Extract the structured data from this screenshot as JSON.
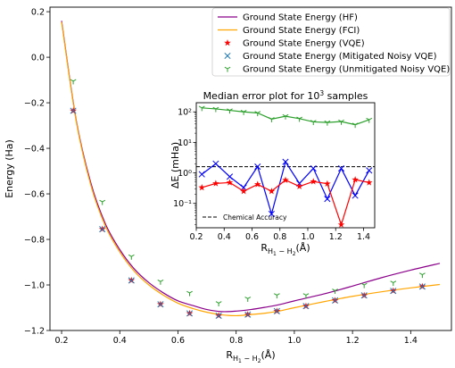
{
  "chart_data": [
    {
      "type": "line",
      "title": "",
      "xlabel": "R_{H1 - H2}(Å)",
      "ylabel": "Energy (Ha)",
      "xlim": [
        0.16,
        1.54
      ],
      "ylim": [
        -1.2,
        0.22
      ],
      "xticks": [
        0.2,
        0.4,
        0.6,
        0.8,
        1.0,
        1.2,
        1.4
      ],
      "xtick_labels": [
        "0.2",
        "0.4",
        "0.6",
        "0.8",
        "1.0",
        "1.2",
        "1.4"
      ],
      "yticks": [
        0.2,
        0.0,
        -0.2,
        -0.4,
        -0.6,
        -0.8,
        -1.0,
        -1.2
      ],
      "ytick_labels": [
        "0.2",
        "0.0",
        "−0.2",
        "−0.4",
        "−0.6",
        "−0.8",
        "−1.0",
        "−1.2"
      ],
      "legend_placement": "top-right",
      "legend": [
        {
          "label": "Ground State Energy (HF)",
          "color": "#8b008b",
          "marker": "line"
        },
        {
          "label": "Ground State Energy (FCI)",
          "color": "#ffa500",
          "marker": "line"
        },
        {
          "label": "Ground State Energy (VQE)",
          "color": "#ff0000",
          "marker": "star"
        },
        {
          "label": "Ground State Energy (Mitigated Noisy VQE)",
          "color": "#1f77b4",
          "marker": "x"
        },
        {
          "label": "Ground State Energy (Unmitigated Noisy VQE)",
          "color": "#2ca02c",
          "marker": "tri-down"
        }
      ],
      "series": [
        {
          "name": "Ground State Energy (HF)",
          "color": "#8b008b",
          "x": [
            0.2,
            0.25,
            0.3,
            0.35,
            0.4,
            0.45,
            0.5,
            0.55,
            0.6,
            0.65,
            0.7,
            0.75,
            0.8,
            0.85,
            0.9,
            0.95,
            1.0,
            1.1,
            1.2,
            1.3,
            1.4,
            1.5
          ],
          "y": [
            0.16,
            -0.275,
            -0.55,
            -0.73,
            -0.845,
            -0.93,
            -0.99,
            -1.035,
            -1.07,
            -1.09,
            -1.108,
            -1.117,
            -1.115,
            -1.108,
            -1.098,
            -1.086,
            -1.07,
            -1.04,
            -1.005,
            -0.968,
            -0.935,
            -0.905
          ]
        },
        {
          "name": "Ground State Energy (FCI)",
          "color": "#ffa500",
          "x": [
            0.2,
            0.25,
            0.3,
            0.35,
            0.4,
            0.45,
            0.5,
            0.55,
            0.6,
            0.65,
            0.7,
            0.75,
            0.8,
            0.85,
            0.9,
            0.95,
            1.0,
            1.1,
            1.2,
            1.3,
            1.4,
            1.5
          ],
          "y": [
            0.155,
            -0.28,
            -0.56,
            -0.74,
            -0.855,
            -0.94,
            -1.0,
            -1.045,
            -1.08,
            -1.103,
            -1.12,
            -1.131,
            -1.135,
            -1.13,
            -1.124,
            -1.114,
            -1.1,
            -1.074,
            -1.05,
            -1.03,
            -1.013,
            -0.998
          ]
        },
        {
          "name": "Ground State Energy (VQE)",
          "color": "#ff0000",
          "x": [
            0.24,
            0.34,
            0.44,
            0.54,
            0.64,
            0.74,
            0.84,
            0.94,
            1.04,
            1.14,
            1.24,
            1.34,
            1.44
          ],
          "y": [
            -0.235,
            -0.755,
            -0.98,
            -1.085,
            -1.125,
            -1.135,
            -1.13,
            -1.115,
            -1.093,
            -1.068,
            -1.046,
            -1.026,
            -1.007
          ]
        },
        {
          "name": "Ground State Energy (Mitigated Noisy VQE)",
          "color": "#1f77b4",
          "x": [
            0.24,
            0.34,
            0.44,
            0.54,
            0.64,
            0.74,
            0.84,
            0.94,
            1.04,
            1.14,
            1.24,
            1.34,
            1.44
          ],
          "y": [
            -0.235,
            -0.755,
            -0.98,
            -1.085,
            -1.125,
            -1.135,
            -1.13,
            -1.115,
            -1.093,
            -1.068,
            -1.046,
            -1.026,
            -1.007
          ]
        },
        {
          "name": "Ground State Energy (Unmitigated Noisy VQE)",
          "color": "#2ca02c",
          "x": [
            0.24,
            0.34,
            0.44,
            0.54,
            0.64,
            0.74,
            0.84,
            0.94,
            1.04,
            1.14,
            1.24,
            1.34,
            1.44
          ],
          "y": [
            -0.105,
            -0.635,
            -0.875,
            -0.985,
            -1.035,
            -1.08,
            -1.06,
            -1.045,
            -1.045,
            -1.025,
            -1.0,
            -0.99,
            -0.955
          ]
        }
      ]
    },
    {
      "type": "line",
      "title": "Median error plot for 10³ samples",
      "xlabel": "R_{H1 - H2}(Å)",
      "ylabel": "ΔE (mHa)",
      "xlim": [
        0.2,
        1.48
      ],
      "ylim_log10": [
        -1.8,
        2.3
      ],
      "yscale": "log",
      "xticks": [
        0.2,
        0.4,
        0.6,
        0.8,
        1.0,
        1.2,
        1.4
      ],
      "xtick_labels": [
        "0.2",
        "0.4",
        "0.6",
        "0.8",
        "1.0",
        "1.2",
        "1.4"
      ],
      "yticks_log10": [
        2,
        1,
        0,
        -1
      ],
      "ytick_labels": [
        "10²",
        "10¹",
        "10⁰",
        "10⁻¹"
      ],
      "legend_placement": "lower-left",
      "legend": [
        {
          "label": "Chemical Accuracy",
          "color": "#000000",
          "marker": "dashed"
        }
      ],
      "reference_line": {
        "name": "Chemical Accuracy",
        "value": 1.6
      },
      "series": [
        {
          "name": "Unmitigated Noisy VQE",
          "color": "#2ca02c",
          "x": [
            0.24,
            0.34,
            0.44,
            0.54,
            0.64,
            0.74,
            0.84,
            0.94,
            1.04,
            1.14,
            1.24,
            1.34,
            1.44
          ],
          "y": [
            135,
            125,
            112,
            100,
            92,
            58,
            72,
            60,
            47,
            45,
            48,
            38,
            55
          ]
        },
        {
          "name": "Mitigated Noisy VQE",
          "color": "#0000ff",
          "x": [
            0.24,
            0.34,
            0.44,
            0.54,
            0.64,
            0.74,
            0.84,
            0.94,
            1.04,
            1.14,
            1.24,
            1.34,
            1.44
          ],
          "y": [
            0.9,
            2.0,
            0.75,
            0.33,
            1.6,
            0.045,
            2.3,
            0.45,
            1.4,
            0.14,
            1.4,
            0.18,
            1.2
          ]
        },
        {
          "name": "VQE",
          "color": "#ff0000",
          "x": [
            0.24,
            0.34,
            0.44,
            0.54,
            0.64,
            0.74,
            0.84,
            0.94,
            1.04,
            1.14,
            1.24,
            1.34,
            1.44
          ],
          "y": [
            0.33,
            0.45,
            0.48,
            0.25,
            0.42,
            0.25,
            0.58,
            0.36,
            0.52,
            0.44,
            0.02,
            0.6,
            0.48
          ]
        }
      ]
    }
  ]
}
